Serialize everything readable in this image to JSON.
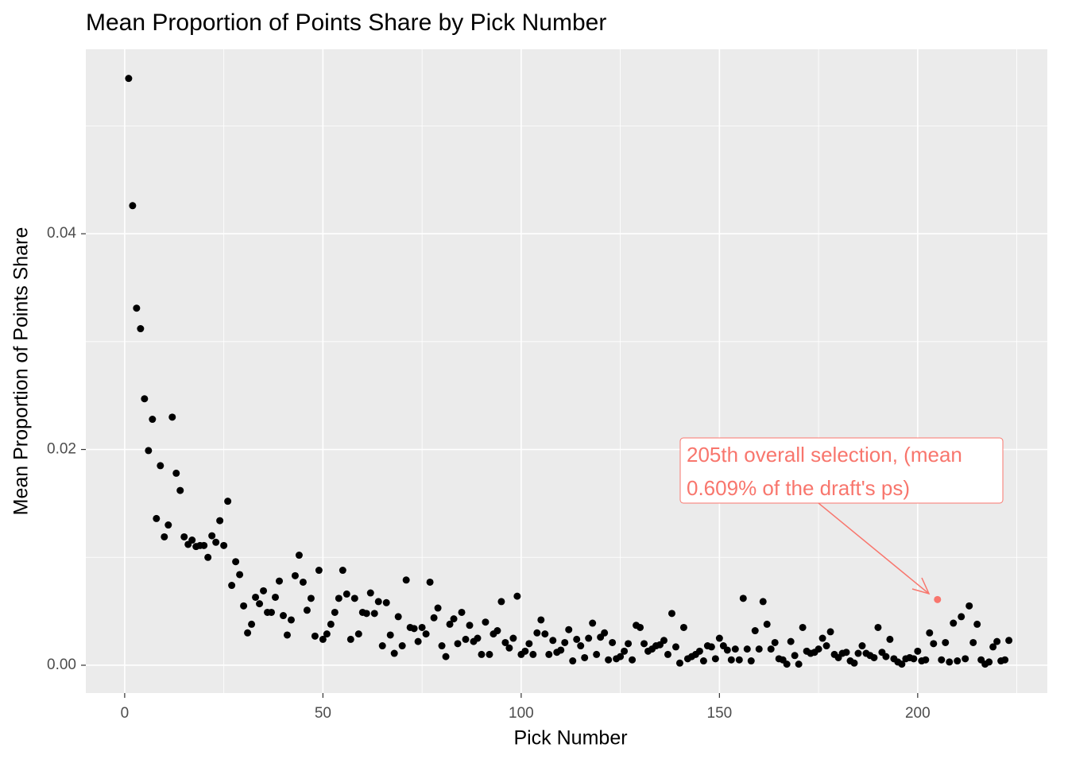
{
  "chart_data": {
    "type": "scatter",
    "title": "Mean Proportion of Points Share by Pick Number",
    "x_label": "Pick Number",
    "y_label": "Mean Proportion of Points Share",
    "xlim": [
      -9.8,
      232.7
    ],
    "ylim": [
      -0.00258,
      0.0571
    ],
    "xticks": [
      0,
      50,
      100,
      150,
      200
    ],
    "yticks": [
      {
        "value": 0,
        "label": "0.00"
      },
      {
        "value": 0.02,
        "label": "0.02"
      },
      {
        "value": 0.04,
        "label": "0.04"
      }
    ],
    "x_minor_ticks": [
      25,
      75,
      125,
      175,
      225
    ],
    "y_minor_ticks": [
      0.01,
      0.03,
      0.05
    ],
    "grid": true,
    "color": "#000000",
    "x": [
      1,
      2,
      3,
      4,
      5,
      6,
      7,
      8,
      9,
      10,
      11,
      12,
      13,
      14,
      15,
      16,
      17,
      18,
      19,
      20,
      21,
      22,
      23,
      24,
      25,
      26,
      27,
      28,
      29,
      30,
      31,
      32,
      33,
      34,
      35,
      36,
      37,
      38,
      39,
      40,
      41,
      42,
      43,
      44,
      45,
      46,
      47,
      48,
      49,
      50,
      51,
      52,
      53,
      54,
      55,
      56,
      57,
      58,
      59,
      60,
      61,
      62,
      63,
      64,
      65,
      66,
      67,
      68,
      69,
      70,
      71,
      72,
      73,
      74,
      75,
      76,
      77,
      78,
      79,
      80,
      81,
      82,
      83,
      84,
      85,
      86,
      87,
      88,
      89,
      90,
      91,
      92,
      93,
      94,
      95,
      96,
      97,
      98,
      99,
      100,
      101,
      102,
      103,
      104,
      105,
      106,
      107,
      108,
      109,
      110,
      111,
      112,
      113,
      114,
      115,
      116,
      117,
      118,
      119,
      120,
      121,
      122,
      123,
      124,
      125,
      126,
      127,
      128,
      129,
      130,
      131,
      132,
      133,
      134,
      135,
      136,
      137,
      138,
      139,
      140,
      141,
      142,
      143,
      144,
      145,
      146,
      147,
      148,
      149,
      150,
      151,
      152,
      153,
      154,
      155,
      156,
      157,
      158,
      159,
      160,
      161,
      162,
      163,
      164,
      165,
      166,
      167,
      168,
      169,
      170,
      171,
      172,
      173,
      174,
      175,
      176,
      177,
      178,
      179,
      180,
      181,
      182,
      183,
      184,
      185,
      186,
      187,
      188,
      189,
      190,
      191,
      192,
      193,
      194,
      195,
      196,
      197,
      198,
      199,
      200,
      201,
      202,
      203,
      204,
      206,
      207,
      208,
      209,
      210,
      211,
      212,
      213,
      214,
      215,
      216,
      217,
      218,
      219,
      220,
      221,
      222,
      223
    ],
    "y": [
      0.0544,
      0.0426,
      0.0331,
      0.0312,
      0.0247,
      0.0199,
      0.0228,
      0.0136,
      0.0185,
      0.0119,
      0.013,
      0.023,
      0.0178,
      0.0162,
      0.0119,
      0.0112,
      0.0116,
      0.011,
      0.0111,
      0.0111,
      0.01,
      0.012,
      0.0114,
      0.0134,
      0.0111,
      0.0152,
      0.0074,
      0.0096,
      0.0084,
      0.0055,
      0.003,
      0.0038,
      0.0063,
      0.0057,
      0.0069,
      0.0049,
      0.0049,
      0.0063,
      0.0078,
      0.0046,
      0.0028,
      0.0042,
      0.0083,
      0.0102,
      0.0077,
      0.0051,
      0.0062,
      0.0027,
      0.0088,
      0.0024,
      0.0029,
      0.0038,
      0.0049,
      0.0062,
      0.0088,
      0.0066,
      0.0024,
      0.0062,
      0.0029,
      0.0049,
      0.0048,
      0.0067,
      0.0048,
      0.0059,
      0.0018,
      0.0058,
      0.0028,
      0.0011,
      0.0045,
      0.0018,
      0.0079,
      0.0035,
      0.0034,
      0.0022,
      0.0035,
      0.0029,
      0.0077,
      0.0044,
      0.0053,
      0.0018,
      0.0008,
      0.0038,
      0.0043,
      0.002,
      0.0049,
      0.0024,
      0.0037,
      0.0022,
      0.0025,
      0.001,
      0.004,
      0.001,
      0.0029,
      0.0032,
      0.0059,
      0.0021,
      0.0016,
      0.0025,
      0.0064,
      0.001,
      0.0013,
      0.002,
      0.001,
      0.003,
      0.0042,
      0.0029,
      0.001,
      0.0023,
      0.0012,
      0.0014,
      0.0021,
      0.0033,
      0.0004,
      0.0024,
      0.0018,
      0.0007,
      0.0025,
      0.0039,
      0.001,
      0.0026,
      0.003,
      0.0005,
      0.0021,
      0.0006,
      0.0008,
      0.0013,
      0.002,
      0.0005,
      0.0037,
      0.0035,
      0.002,
      0.0013,
      0.0015,
      0.0018,
      0.0019,
      0.0023,
      0.001,
      0.0048,
      0.0017,
      0.0002,
      0.0035,
      0.0006,
      0.0008,
      0.001,
      0.0013,
      0.0004,
      0.0018,
      0.0017,
      0.0006,
      0.0025,
      0.0018,
      0.0014,
      0.0005,
      0.0015,
      0.0005,
      0.0062,
      0.0015,
      0.0004,
      0.0032,
      0.0015,
      0.0059,
      0.0038,
      0.0015,
      0.0021,
      0.0006,
      0.0005,
      0.0001,
      0.0022,
      0.0009,
      0.0001,
      0.0035,
      0.0013,
      0.0011,
      0.0012,
      0.0015,
      0.0025,
      0.0018,
      0.0031,
      0.001,
      0.0007,
      0.0011,
      0.0012,
      0.0004,
      0.0002,
      0.0011,
      0.0018,
      0.0011,
      0.0009,
      0.0007,
      0.0035,
      0.0012,
      0.0008,
      0.0024,
      0.0006,
      0.0003,
      0.0001,
      0.0006,
      0.0007,
      0.0006,
      0.0013,
      0.0004,
      0.0005,
      0.003,
      0.002,
      0.0005,
      0.0021,
      0.0003,
      0.0039,
      0.0004,
      0.0045,
      0.0006,
      0.0055,
      0.0021,
      0.0038,
      0.0005,
      0.0001,
      0.0003,
      0.0017,
      0.0022,
      0.0004,
      0.0005,
      0.0023
    ],
    "highlight": {
      "x": 205,
      "y": 0.00609,
      "color": "#f8766d"
    },
    "annotation": [
      "205th overall selection, (mean",
      "0.609% of the draft's ps)"
    ]
  }
}
